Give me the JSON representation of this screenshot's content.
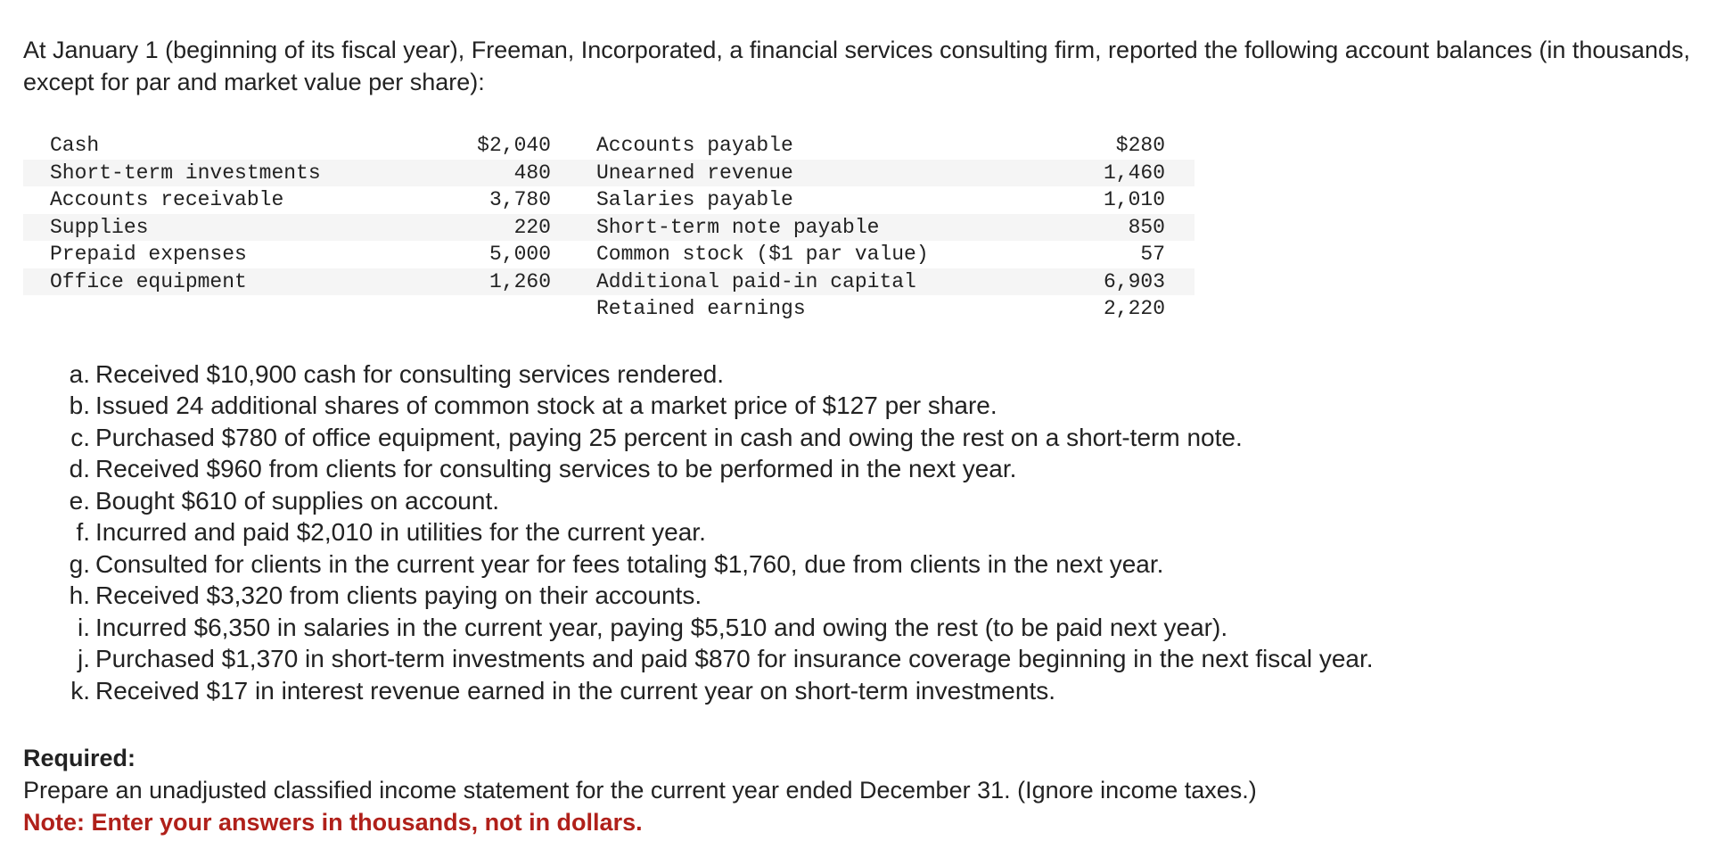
{
  "intro": "At January 1 (beginning of its fiscal year), Freeman, Incorporated, a financial services consulting firm, reported the following account balances (in thousands, except for par and market value per share):",
  "balances": {
    "left": [
      {
        "label": "Cash",
        "amount": "$2,040"
      },
      {
        "label": "Short-term investments",
        "amount": "480"
      },
      {
        "label": "Accounts receivable",
        "amount": "3,780"
      },
      {
        "label": "Supplies",
        "amount": "220"
      },
      {
        "label": "Prepaid expenses",
        "amount": "5,000"
      },
      {
        "label": "Office equipment",
        "amount": "1,260"
      }
    ],
    "right": [
      {
        "label": "Accounts payable",
        "amount": "$280"
      },
      {
        "label": "Unearned revenue",
        "amount": "1,460"
      },
      {
        "label": "Salaries payable",
        "amount": "1,010"
      },
      {
        "label": "Short-term note payable",
        "amount": "850"
      },
      {
        "label": "Common stock ($1 par value)",
        "amount": "57"
      },
      {
        "label": "Additional paid-in capital",
        "amount": "6,903"
      },
      {
        "label": "Retained earnings",
        "amount": "2,220"
      }
    ]
  },
  "transactions": [
    {
      "letter": "a.",
      "text": "Received $10,900 cash for consulting services rendered."
    },
    {
      "letter": "b.",
      "text": "Issued 24 additional shares of common stock at a market price of $127 per share."
    },
    {
      "letter": "c.",
      "text": "Purchased $780 of office equipment, paying 25 percent in cash and owing the rest on a short-term note."
    },
    {
      "letter": "d.",
      "text": "Received $960 from clients for consulting services to be performed in the next year."
    },
    {
      "letter": "e.",
      "text": "Bought $610 of supplies on account."
    },
    {
      "letter": "f.",
      "text": "Incurred and paid $2,010 in utilities for the current year."
    },
    {
      "letter": "g.",
      "text": "Consulted for clients in the current year for fees totaling $1,760, due from clients in the next year."
    },
    {
      "letter": "h.",
      "text": "Received $3,320 from clients paying on their accounts."
    },
    {
      "letter": "i.",
      "text": "Incurred $6,350 in salaries in the current year, paying $5,510 and owing the rest (to be paid next year)."
    },
    {
      "letter": "j.",
      "text": "Purchased $1,370 in short-term investments and paid $870 for insurance coverage beginning in the next fiscal year."
    },
    {
      "letter": "k.",
      "text": "Received $17 in interest revenue earned in the current year on short-term investments."
    }
  ],
  "required": {
    "heading": "Required:",
    "text": "Prepare an unadjusted classified income statement for the current year ended December 31. (Ignore income taxes.)",
    "note": "Note: Enter your answers in thousands, not in dollars."
  },
  "colors": {
    "text": "#222222",
    "note": "#b0201a",
    "row_shade": "#f5f5f5"
  }
}
